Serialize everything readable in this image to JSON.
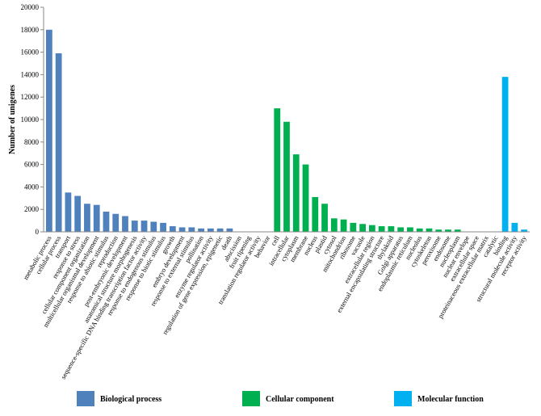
{
  "chart_data": {
    "type": "bar",
    "ylabel": "Number of unigenes",
    "ylim": [
      0,
      20000
    ],
    "yticks": [
      0,
      2000,
      4000,
      6000,
      8000,
      10000,
      12000,
      14000,
      16000,
      18000,
      20000
    ],
    "grid": false,
    "legend_position": "bottom",
    "series": [
      {
        "name": "Biological process",
        "color": "#4f81bd",
        "categories": [
          "metabolic process",
          "cellular process",
          "transport",
          "response to stress",
          "cellular component organization",
          "multicellular organismal development",
          "response to abiotic stimulus",
          "reproduction",
          "post-embryonic development",
          "anatomical structure morphogenesis",
          "sequence-specific DNA binding transcription factor activity",
          "response to endogenous stimulus",
          "response to biotic stimulus",
          "growth",
          "embryo development",
          "response to external stimulus",
          "pollination",
          "enzyme regulator activity",
          "regulation of gene expression, epigenetic",
          "death",
          "abscission",
          "fruit ripening",
          "translation regulator activity",
          "behavior"
        ],
        "values": [
          18000,
          15900,
          3500,
          3200,
          2500,
          2400,
          1800,
          1600,
          1400,
          1000,
          1000,
          900,
          800,
          500,
          400,
          400,
          300,
          300,
          300,
          300,
          0,
          0,
          0,
          0
        ]
      },
      {
        "name": "Cellular component",
        "color": "#00b050",
        "categories": [
          "cell",
          "intracellular",
          "cytoplasm",
          "membrane",
          "nucleus",
          "plastid",
          "cytosol",
          "mitochondrion",
          "ribosome",
          "vacuole",
          "extracellular region",
          "external encapsulating structure",
          "thylakoid",
          "Golgi apparatus",
          "endoplasmic reticulum",
          "nucleolus",
          "cytoskeleton",
          "peroxisome",
          "endosome",
          "nucleoplasm",
          "nuclear envelope",
          "extracellular space",
          "proteinaceous extracellular matrix"
        ],
        "values": [
          11000,
          9800,
          6900,
          6000,
          3100,
          2500,
          1200,
          1100,
          800,
          700,
          600,
          500,
          500,
          400,
          400,
          300,
          300,
          200,
          200,
          200,
          0,
          0,
          0
        ]
      },
      {
        "name": "Molecular function",
        "color": "#00b0f0",
        "categories": [
          "catalytic",
          "binding",
          "structural molecule activity",
          "receptor activity"
        ],
        "values": [
          0,
          13800,
          800,
          200
        ]
      }
    ]
  }
}
